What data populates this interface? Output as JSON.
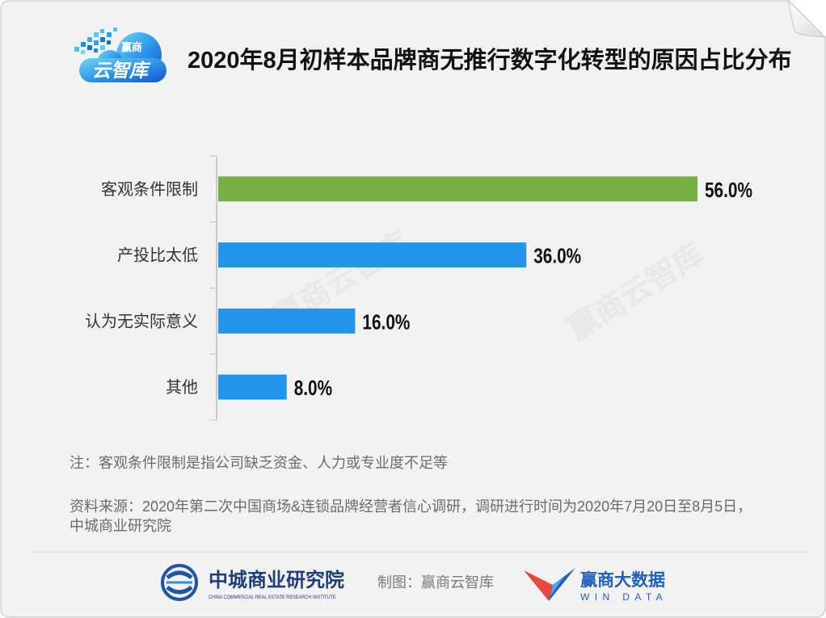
{
  "logo": {
    "line1": "赢商",
    "line2": "云智库"
  },
  "chart_data": {
    "type": "bar",
    "horizontal": true,
    "title": "2020年8月初样本品牌商无推行数字化转型的原因占比分布",
    "categories": [
      "客观条件限制",
      "产投比太低",
      "认为无实际意义",
      "其他"
    ],
    "values": [
      56.0,
      36.0,
      16.0,
      8.0
    ],
    "data_labels": [
      "56.0%",
      "36.0%",
      "16.0%",
      "8.0%"
    ],
    "bar_colors": [
      "#76B041",
      "#2395EA",
      "#2395EA",
      "#2395EA"
    ],
    "xlabel": "",
    "ylabel": "",
    "grid": false,
    "show_legend": false
  },
  "watermark": "赢商云智库",
  "notes": {
    "note": "注：客观条件限制是指公司缺乏资金、人力或专业度不足等",
    "source_lines": [
      "资料来源：2020年第二次中国商场&连锁品牌经营者信心调研，调研进行时间为2020年7月20日至8月5日，",
      "中城商业研究院"
    ]
  },
  "footer": {
    "org_name": "中城商业研究院",
    "org_name_en": "CHINA COMMERCIAL REAL ESTATE RESEARCH INSTITUTE",
    "credit": "制图：赢商云智库",
    "brand_name": "赢商大数据",
    "brand_name_en": "WIN DATA"
  },
  "icons": {
    "header_logo": "cloud-logo-icon",
    "footer_left_logo": "institute-emblem-icon",
    "footer_right_logo": "windata-logo-icon"
  },
  "colors": {
    "bar_green": "#76B041",
    "bar_blue": "#2395EA",
    "title_text": "#111111",
    "note_text": "#6B6B6B",
    "footer_navy": "#1C3F7C",
    "brand_blue": "#1F5FC0",
    "brand_red": "#E8473C"
  }
}
